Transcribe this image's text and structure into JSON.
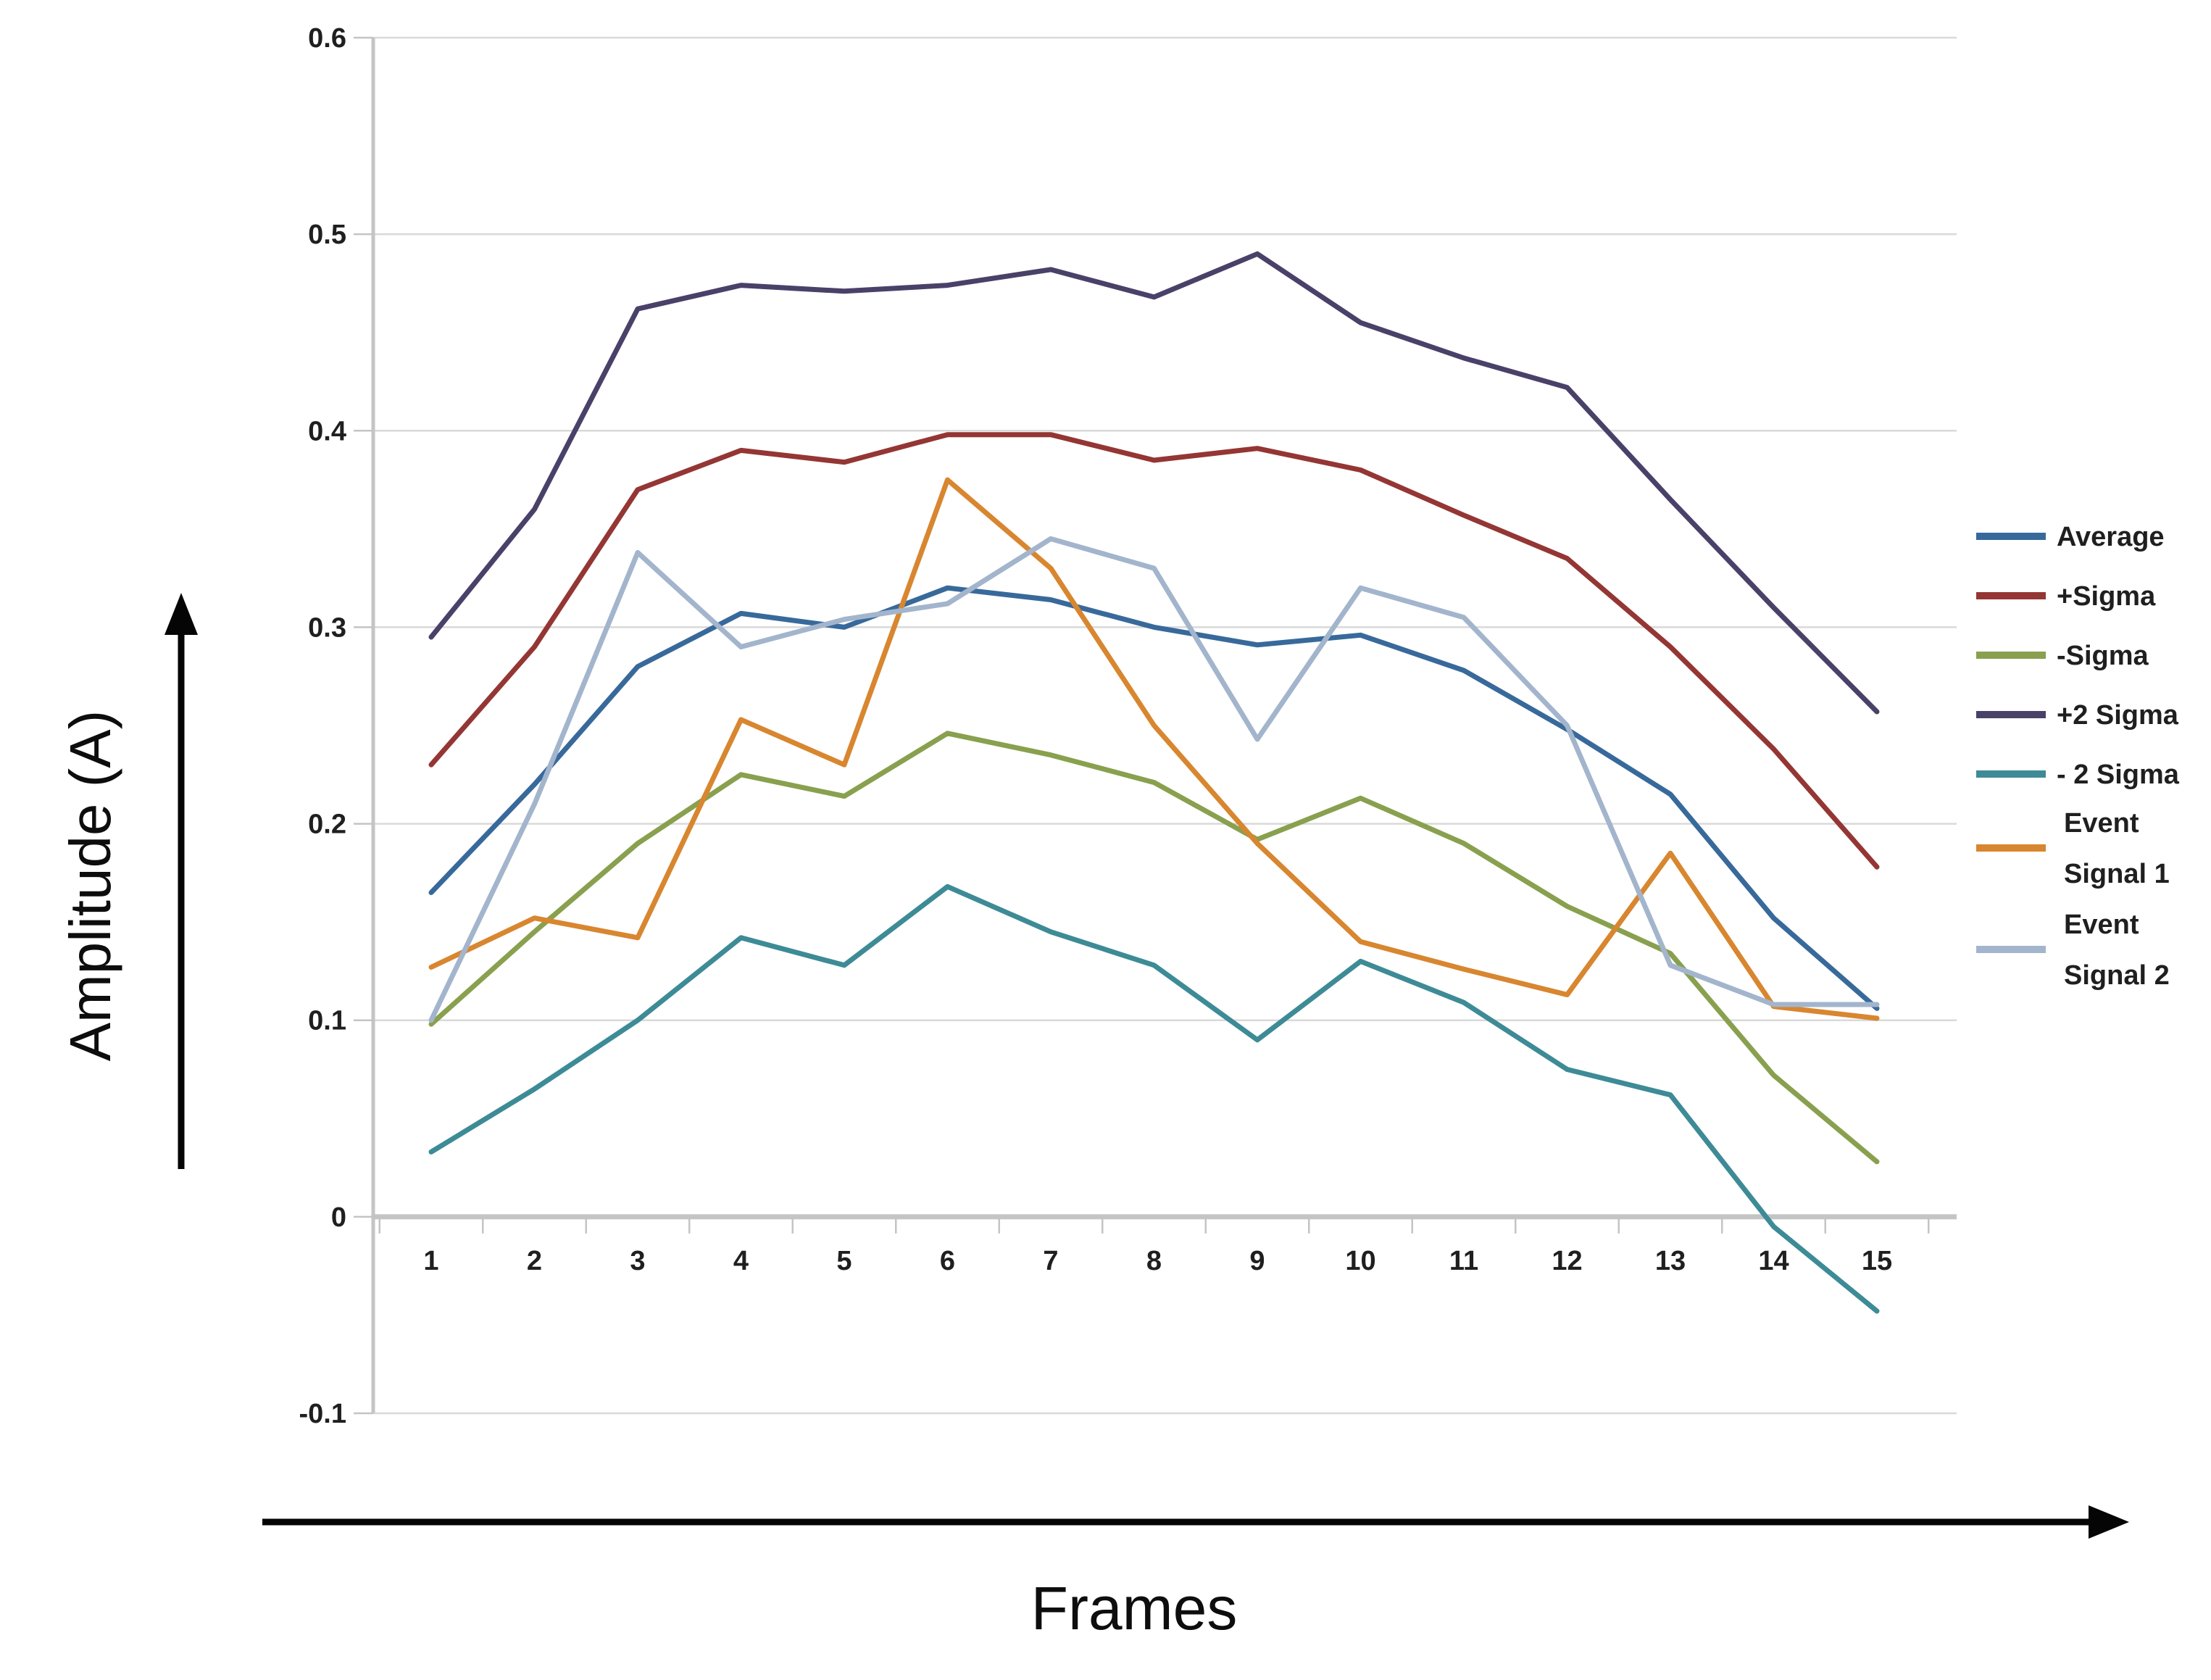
{
  "chart_data": {
    "type": "line",
    "title": "",
    "xlabel": "Frames",
    "ylabel": "Amplitude (A)",
    "categories": [
      "1",
      "2",
      "3",
      "4",
      "5",
      "6",
      "7",
      "8",
      "9",
      "10",
      "11",
      "12",
      "13",
      "14",
      "15"
    ],
    "ylim": [
      -0.1,
      0.6
    ],
    "ytick_interval": 0.1,
    "ytick_labels": [
      "0.6",
      "0.5",
      "0.4",
      "0.3",
      "0.2",
      "0.1",
      "0",
      "-0.1"
    ],
    "grid": true,
    "legend_position": "right",
    "series": [
      {
        "name": "Average",
        "color": "#38699B",
        "values": [
          0.165,
          0.22,
          0.28,
          0.307,
          0.3,
          0.32,
          0.314,
          0.3,
          0.291,
          0.296,
          0.278,
          0.248,
          0.215,
          0.152,
          0.106
        ]
      },
      {
        "name": "+Sigma",
        "color": "#943634",
        "values": [
          0.23,
          0.29,
          0.37,
          0.39,
          0.384,
          0.398,
          0.398,
          0.385,
          0.391,
          0.38,
          0.357,
          0.335,
          0.29,
          0.238,
          0.178
        ]
      },
      {
        "name": "-Sigma",
        "color": "#89A04E",
        "values": [
          0.098,
          0.145,
          0.19,
          0.225,
          0.214,
          0.246,
          0.235,
          0.221,
          0.192,
          0.213,
          0.19,
          0.158,
          0.134,
          0.072,
          0.028
        ]
      },
      {
        "name": "+2 Sigma",
        "color": "#4A4169",
        "values": [
          0.295,
          0.36,
          0.462,
          0.474,
          0.471,
          0.474,
          0.482,
          0.468,
          0.49,
          0.455,
          0.437,
          0.422,
          0.365,
          0.31,
          0.257
        ]
      },
      {
        "name": "- 2 Sigma",
        "color": "#3D8B96",
        "values": [
          0.033,
          0.065,
          0.1,
          0.142,
          0.128,
          0.168,
          0.145,
          0.128,
          0.09,
          0.13,
          0.109,
          0.075,
          0.062,
          -0.005,
          -0.048
        ]
      },
      {
        "name": "Event\nSignal 1",
        "color": "#D8862F",
        "values": [
          0.127,
          0.152,
          0.142,
          0.253,
          0.23,
          0.375,
          0.33,
          0.25,
          0.19,
          0.14,
          0.126,
          0.113,
          0.185,
          0.107,
          0.101
        ]
      },
      {
        "name": "Event\nSignal 2",
        "color": "#A3B5CC",
        "values": [
          0.1,
          0.21,
          0.338,
          0.29,
          0.304,
          0.312,
          0.345,
          0.33,
          0.243,
          0.32,
          0.305,
          0.25,
          0.128,
          0.108,
          0.108
        ]
      }
    ]
  },
  "axes": {
    "y_title": "Amplitude (A)",
    "x_title": "Frames"
  },
  "colors": {
    "background": "#FFFFFF",
    "gridline": "#D9D9D9",
    "axis_line": "#C4C4C4",
    "tick_label": "#1F1F1F",
    "legend_text": "#1F1F1F",
    "arrow": "#050505",
    "axis_title": "#0D0D0D"
  }
}
